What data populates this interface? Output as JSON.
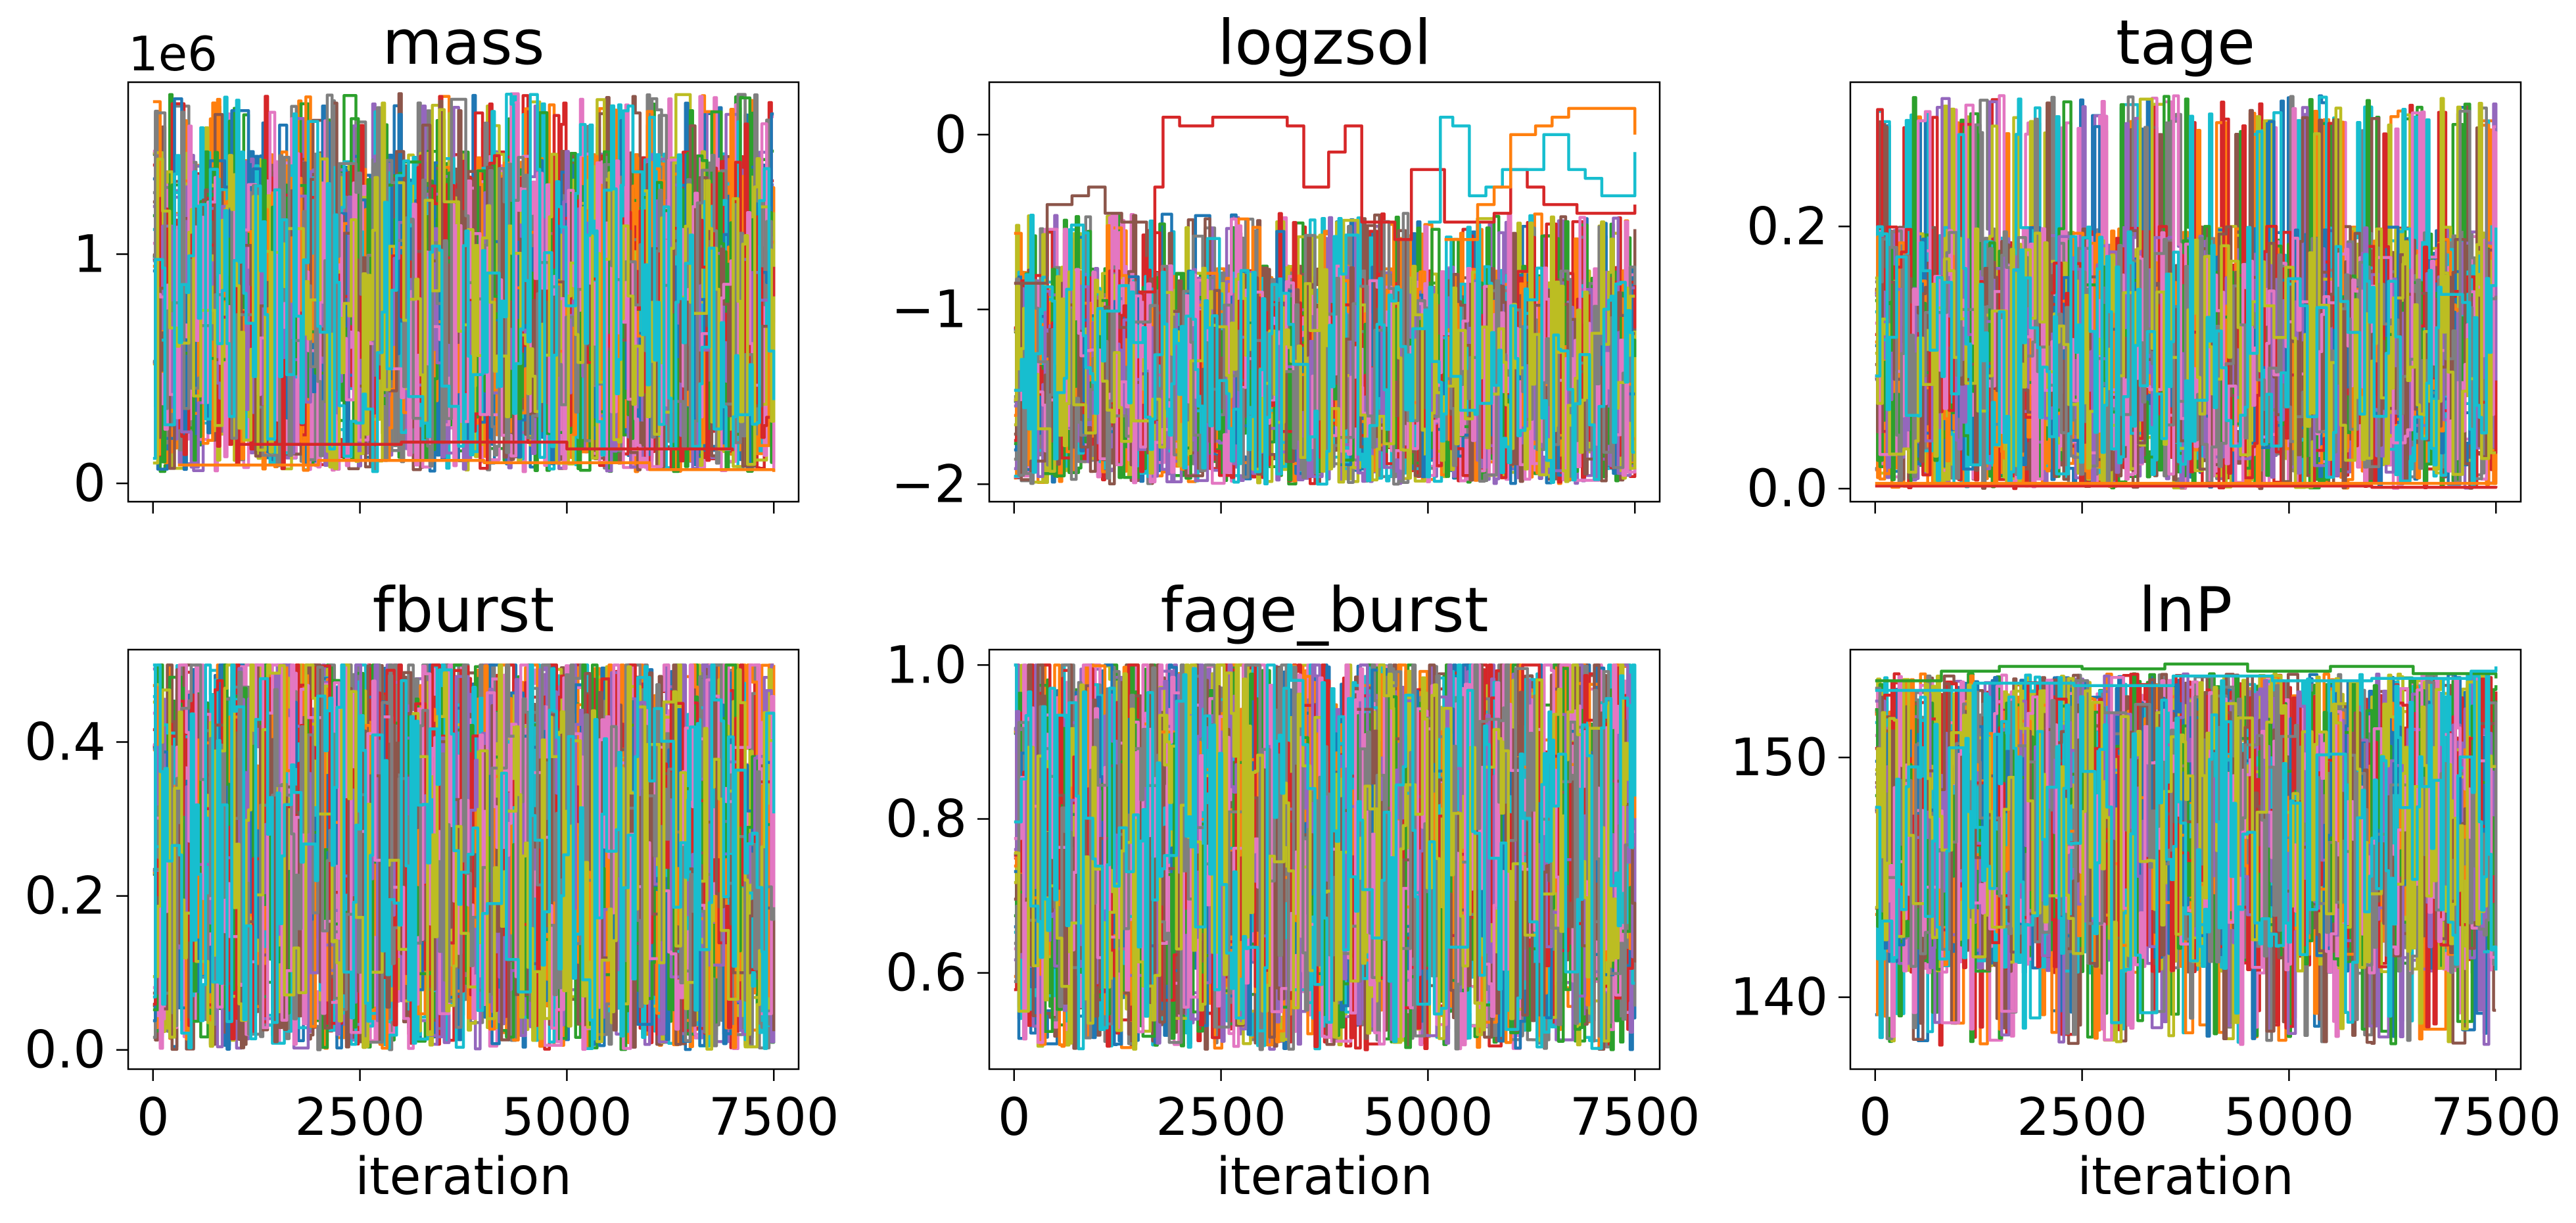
{
  "chart_data": [
    {
      "type": "line",
      "title": "mass",
      "xlabel": "",
      "ylabel": "",
      "offset_text": "1e6",
      "xlim": [
        -300,
        7800
      ],
      "ylim": [
        -0.08,
        1.75
      ],
      "x_ticks": [
        0,
        2500,
        5000,
        7500
      ],
      "x_tick_labels": [],
      "y_ticks": [
        0,
        1
      ],
      "y_tick_labels": [
        "0",
        "1"
      ],
      "n_iterations": 7500,
      "n_walkers": 30,
      "band": [
        0.05,
        1.45
      ],
      "spikes": [
        1.55,
        1.7
      ],
      "outliers": [
        {
          "color": "#ff7f0e",
          "x": [
            300,
            2000,
            4000,
            6000,
            7500
          ],
          "y": [
            0.08,
            0.1,
            0.09,
            0.06,
            0.05
          ]
        },
        {
          "color": "#d62728",
          "x": [
            1000,
            3000,
            5000,
            7000
          ],
          "y": [
            0.17,
            0.18,
            0.15,
            0.14
          ]
        }
      ]
    },
    {
      "type": "line",
      "title": "logzsol",
      "xlabel": "",
      "ylabel": "",
      "xlim": [
        -300,
        7800
      ],
      "ylim": [
        -2.1,
        0.3
      ],
      "x_ticks": [
        0,
        2500,
        5000,
        7500
      ],
      "x_tick_labels": [],
      "y_ticks": [
        -2,
        -1,
        0
      ],
      "y_tick_labels": [
        "−2",
        "−1",
        "0"
      ],
      "n_iterations": 7500,
      "n_walkers": 30,
      "band": [
        -2.0,
        -0.75
      ],
      "spikes": [
        -0.6,
        -0.45
      ],
      "outliers": [
        {
          "color": "#8c564b",
          "x": [
            0,
            300,
            400,
            700,
            900,
            1100,
            1300,
            1600
          ],
          "y": [
            -0.85,
            -0.85,
            -0.4,
            -0.35,
            -0.3,
            -0.45,
            -0.5,
            -0.7
          ]
        },
        {
          "color": "#d62728",
          "x": [
            1500,
            1700,
            1800,
            2000,
            2400,
            2800,
            3300,
            3500,
            3800,
            4000,
            4200,
            4600,
            4800,
            5100,
            5200,
            5800,
            6000,
            6200,
            6400,
            6800,
            7500
          ],
          "y": [
            -0.9,
            -0.3,
            0.1,
            0.05,
            0.1,
            0.1,
            0.05,
            -0.3,
            -0.1,
            0.05,
            -0.5,
            -0.6,
            -0.2,
            -0.2,
            -0.5,
            -0.45,
            -0.2,
            -0.3,
            -0.4,
            -0.45,
            -0.4
          ]
        },
        {
          "color": "#17becf",
          "x": [
            5000,
            5150,
            5300,
            5500,
            5700,
            5900,
            6100,
            6400,
            6700,
            6900,
            7100,
            7300,
            7500
          ],
          "y": [
            -0.5,
            0.1,
            0.05,
            -0.35,
            -0.3,
            -0.2,
            -0.2,
            0.0,
            -0.2,
            -0.25,
            -0.35,
            -0.35,
            -0.1
          ]
        },
        {
          "color": "#ff7f0e",
          "x": [
            5200,
            5600,
            5800,
            6000,
            6300,
            6500,
            6700,
            7000,
            7500
          ],
          "y": [
            -0.6,
            -0.4,
            -0.3,
            0.0,
            0.05,
            0.1,
            0.15,
            0.15,
            0.0
          ]
        }
      ]
    },
    {
      "type": "line",
      "title": "tage",
      "xlabel": "",
      "ylabel": "",
      "xlim": [
        -300,
        7800
      ],
      "ylim": [
        -0.01,
        0.31
      ],
      "x_ticks": [
        0,
        2500,
        5000,
        7500
      ],
      "x_tick_labels": [],
      "y_ticks": [
        0.0,
        0.2
      ],
      "y_tick_labels": [
        "0.0",
        "0.2"
      ],
      "n_iterations": 7500,
      "n_walkers": 30,
      "band": [
        0.0,
        0.2
      ],
      "spikes": [
        0.27,
        0.3
      ],
      "outliers": [
        {
          "color": "#d62728",
          "x": [
            0,
            2000,
            4000,
            6000,
            7500
          ],
          "y": [
            0.002,
            0.002,
            0.002,
            0.001,
            0.002
          ]
        },
        {
          "color": "#ff7f0e",
          "x": [
            0,
            3000,
            7500
          ],
          "y": [
            0.004,
            0.004,
            0.004
          ]
        }
      ]
    },
    {
      "type": "line",
      "title": "fburst",
      "xlabel": "iteration",
      "ylabel": "",
      "xlim": [
        -300,
        7800
      ],
      "ylim": [
        -0.025,
        0.52
      ],
      "x_ticks": [
        0,
        2500,
        5000,
        7500
      ],
      "x_tick_labels": [
        "0",
        "2500",
        "5000",
        "7500"
      ],
      "y_ticks": [
        0.0,
        0.2,
        0.4
      ],
      "y_tick_labels": [
        "0.0",
        "0.2",
        "0.4"
      ],
      "n_iterations": 7500,
      "n_walkers": 30,
      "band": [
        0.0,
        0.5
      ],
      "spikes": [
        0.5,
        0.5
      ],
      "outliers": []
    },
    {
      "type": "line",
      "title": "fage_burst",
      "xlabel": "iteration",
      "ylabel": "",
      "xlim": [
        -300,
        7800
      ],
      "ylim": [
        0.475,
        1.02
      ],
      "x_ticks": [
        0,
        2500,
        5000,
        7500
      ],
      "x_tick_labels": [
        "0",
        "2500",
        "5000",
        "7500"
      ],
      "y_ticks": [
        0.6,
        0.8,
        1.0
      ],
      "y_tick_labels": [
        "0.6",
        "0.8",
        "1.0"
      ],
      "n_iterations": 7500,
      "n_walkers": 30,
      "band": [
        0.5,
        1.0
      ],
      "spikes": [
        1.0,
        1.0
      ],
      "outliers": []
    },
    {
      "type": "line",
      "title": "lnP",
      "xlabel": "iteration",
      "ylabel": "",
      "xlim": [
        -300,
        7800
      ],
      "ylim": [
        137,
        154.5
      ],
      "x_ticks": [
        0,
        2500,
        5000,
        7500
      ],
      "x_tick_labels": [
        "0",
        "2500",
        "5000",
        "7500"
      ],
      "y_ticks": [
        140,
        150
      ],
      "y_tick_labels": [
        "140",
        "150"
      ],
      "n_iterations": 7500,
      "n_walkers": 30,
      "band": [
        141,
        153.5
      ],
      "spikes": [
        138,
        139.5
      ],
      "outliers": [
        {
          "color": "#2ca02c",
          "x": [
            0,
            800,
            1500,
            2500,
            3500,
            4500,
            5500,
            6500,
            7500
          ],
          "y": [
            153.2,
            153.6,
            153.8,
            153.7,
            153.9,
            153.6,
            153.8,
            153.5,
            153.3
          ]
        },
        {
          "color": "#17becf",
          "x": [
            0,
            1200,
            2400,
            3600,
            4800,
            6000,
            7200,
            7500
          ],
          "y": [
            152.8,
            153.1,
            153.0,
            153.4,
            153.2,
            153.3,
            153.6,
            153.8
          ]
        }
      ]
    }
  ],
  "colors": [
    "#1f77b4",
    "#ff7f0e",
    "#2ca02c",
    "#d62728",
    "#9467bd",
    "#8c564b",
    "#e377c2",
    "#7f7f7f",
    "#bcbd22",
    "#17becf"
  ]
}
